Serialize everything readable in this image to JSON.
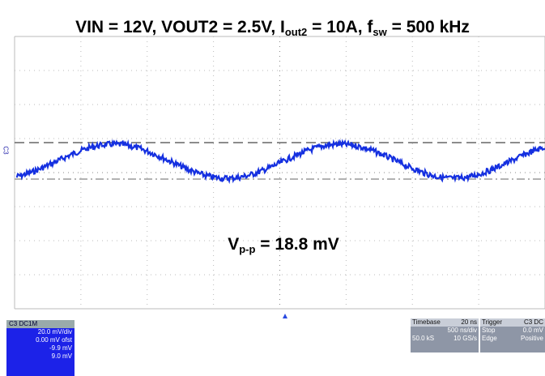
{
  "title": {
    "parts": [
      "VIN = 12V, VOUT2 = 2.5V, I",
      "out2",
      " = 10A, f",
      "sw",
      " = 500 kHz"
    ]
  },
  "annotation": {
    "parts": [
      "V",
      "p-p",
      " = 18.8 mV"
    ]
  },
  "channel_label": "C3",
  "channel_panel": {
    "header": "C3",
    "coupling": "DC1M",
    "lines": [
      "20.0 mV/div",
      "0.00 mV ofst",
      "-9.9 mV",
      "9.0 mV"
    ]
  },
  "timebase_panel": {
    "header": "Timebase",
    "delay": "20 ns",
    "rows": [
      [
        "",
        "500 ns/div"
      ],
      [
        "50.0 kS",
        "10 GS/s"
      ]
    ]
  },
  "trigger_panel": {
    "header": "Trigger",
    "source": "C3 DC",
    "rows": [
      [
        "Stop",
        "0.0 mV"
      ],
      [
        "Edge",
        "Positive"
      ]
    ]
  }
}
